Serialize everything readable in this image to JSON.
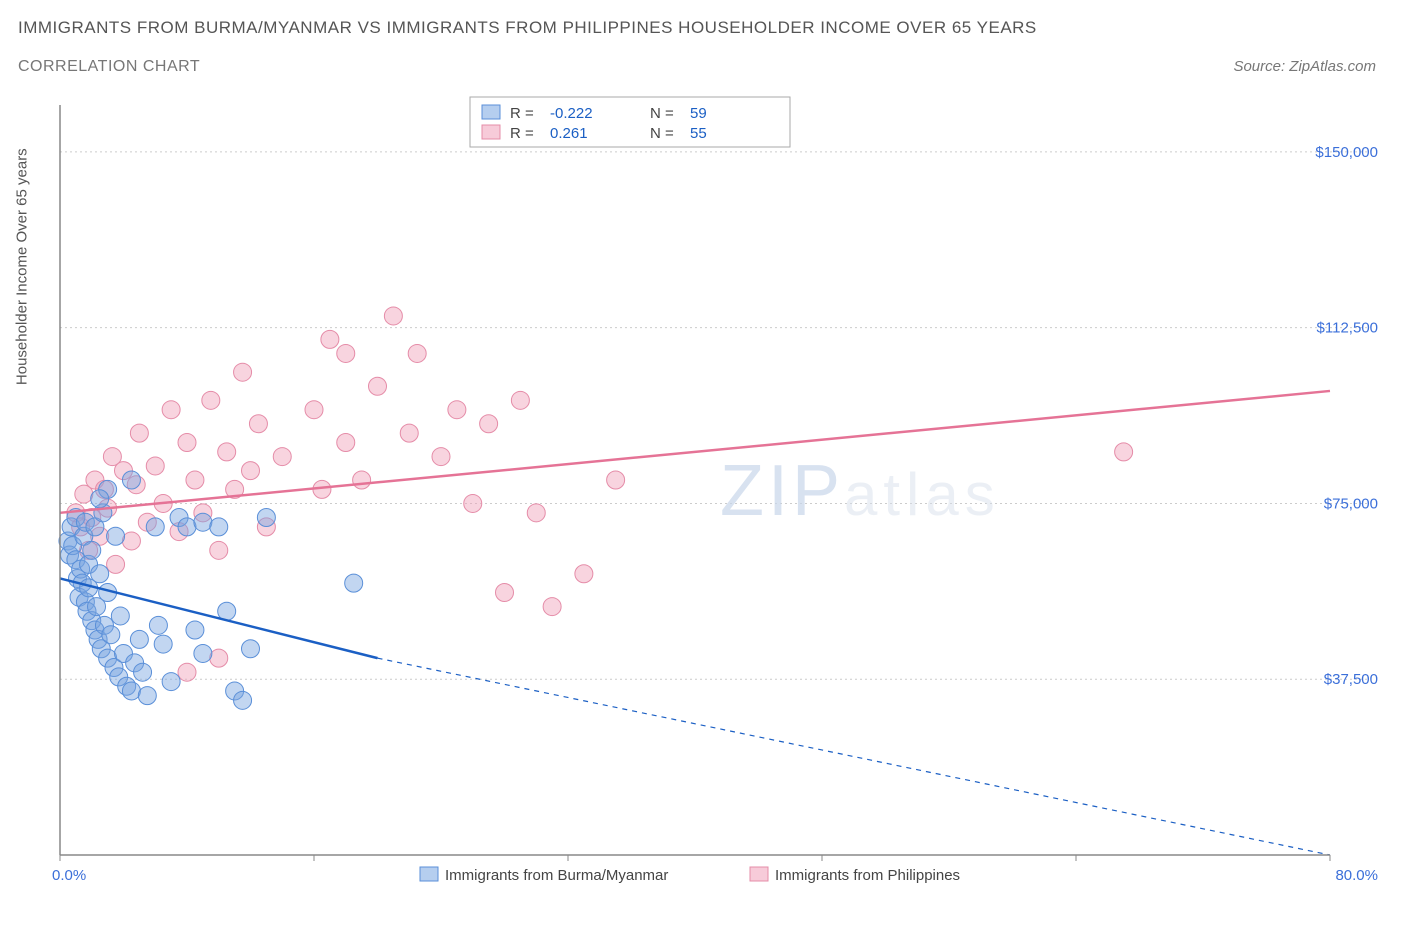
{
  "title_line1": "IMMIGRANTS FROM BURMA/MYANMAR VS IMMIGRANTS FROM PHILIPPINES HOUSEHOLDER INCOME OVER 65 YEARS",
  "title_line2": "CORRELATION CHART",
  "source": "Source: ZipAtlas.com",
  "y_axis_label": "Householder Income Over 65 years",
  "watermark_bold": "ZIP",
  "watermark_light": "atlas",
  "chart": {
    "type": "scatter",
    "background_color": "#ffffff",
    "grid_color": "#cccccc",
    "axis_color": "#888888",
    "xlim": [
      0,
      80
    ],
    "ylim": [
      0,
      160000
    ],
    "x_ticks": [
      0,
      80
    ],
    "x_tick_labels": [
      "0.0%",
      "80.0%"
    ],
    "x_minor_ticks": [
      16,
      32,
      48,
      64
    ],
    "y_ticks": [
      37500,
      75000,
      112500,
      150000
    ],
    "y_tick_labels": [
      "$37,500",
      "$75,000",
      "$112,500",
      "$150,000"
    ],
    "marker_radius": 9,
    "series": [
      {
        "name": "Immigrants from Burma/Myanmar",
        "color_fill": "rgba(120,165,225,0.45)",
        "color_stroke": "#5a8fd8",
        "R": "-0.222",
        "N": "59",
        "trend": {
          "x1": 0,
          "y1": 59000,
          "x2_solid": 20,
          "y2_solid": 42000,
          "x2_dash": 80,
          "y2_dash": 0,
          "color": "#1b5fc4"
        },
        "points": [
          [
            0.5,
            67000
          ],
          [
            0.6,
            64000
          ],
          [
            0.7,
            70000
          ],
          [
            0.8,
            66000
          ],
          [
            1.0,
            63000
          ],
          [
            1.0,
            72000
          ],
          [
            1.1,
            59000
          ],
          [
            1.2,
            55000
          ],
          [
            1.3,
            61000
          ],
          [
            1.4,
            58000
          ],
          [
            1.5,
            68000
          ],
          [
            1.6,
            54000
          ],
          [
            1.6,
            71000
          ],
          [
            1.7,
            52000
          ],
          [
            1.8,
            57000
          ],
          [
            1.8,
            62000
          ],
          [
            2.0,
            65000
          ],
          [
            2.0,
            50000
          ],
          [
            2.2,
            48000
          ],
          [
            2.2,
            70000
          ],
          [
            2.3,
            53000
          ],
          [
            2.4,
            46000
          ],
          [
            2.5,
            60000
          ],
          [
            2.6,
            44000
          ],
          [
            2.7,
            73000
          ],
          [
            2.8,
            49000
          ],
          [
            3.0,
            42000
          ],
          [
            3.0,
            56000
          ],
          [
            3.2,
            47000
          ],
          [
            3.4,
            40000
          ],
          [
            3.5,
            68000
          ],
          [
            3.7,
            38000
          ],
          [
            3.8,
            51000
          ],
          [
            4.0,
            43000
          ],
          [
            4.2,
            36000
          ],
          [
            4.5,
            35000
          ],
          [
            4.7,
            41000
          ],
          [
            5.0,
            46000
          ],
          [
            5.2,
            39000
          ],
          [
            5.5,
            34000
          ],
          [
            6.0,
            70000
          ],
          [
            6.2,
            49000
          ],
          [
            6.5,
            45000
          ],
          [
            7.0,
            37000
          ],
          [
            7.5,
            72000
          ],
          [
            8.0,
            70000
          ],
          [
            8.5,
            48000
          ],
          [
            9.0,
            43000
          ],
          [
            9.0,
            71000
          ],
          [
            10.0,
            70000
          ],
          [
            10.5,
            52000
          ],
          [
            11.0,
            35000
          ],
          [
            11.5,
            33000
          ],
          [
            12.0,
            44000
          ],
          [
            13.0,
            72000
          ],
          [
            4.5,
            80000
          ],
          [
            3.0,
            78000
          ],
          [
            2.5,
            76000
          ],
          [
            18.5,
            58000
          ]
        ]
      },
      {
        "name": "Immigrants from Philippines",
        "color_fill": "rgba(240,160,185,0.45)",
        "color_stroke": "#e58ca8",
        "R": "0.261",
        "N": "55",
        "trend": {
          "x1": 0,
          "y1": 73000,
          "x2": 80,
          "y2": 99000,
          "color": "#e57396"
        },
        "points": [
          [
            1.0,
            73000
          ],
          [
            1.3,
            70000
          ],
          [
            1.5,
            77000
          ],
          [
            1.8,
            65000
          ],
          [
            2.0,
            72000
          ],
          [
            2.2,
            80000
          ],
          [
            2.5,
            68000
          ],
          [
            2.8,
            78000
          ],
          [
            3.0,
            74000
          ],
          [
            3.3,
            85000
          ],
          [
            3.5,
            62000
          ],
          [
            4.0,
            82000
          ],
          [
            4.5,
            67000
          ],
          [
            4.8,
            79000
          ],
          [
            5.0,
            90000
          ],
          [
            5.5,
            71000
          ],
          [
            6.0,
            83000
          ],
          [
            6.5,
            75000
          ],
          [
            7.0,
            95000
          ],
          [
            7.5,
            69000
          ],
          [
            8.0,
            88000
          ],
          [
            8.5,
            80000
          ],
          [
            9.0,
            73000
          ],
          [
            9.5,
            97000
          ],
          [
            10.0,
            65000
          ],
          [
            10.5,
            86000
          ],
          [
            11.0,
            78000
          ],
          [
            11.5,
            103000
          ],
          [
            12.0,
            82000
          ],
          [
            12.5,
            92000
          ],
          [
            13.0,
            70000
          ],
          [
            8.0,
            39000
          ],
          [
            10.0,
            42000
          ],
          [
            14.0,
            85000
          ],
          [
            16.0,
            95000
          ],
          [
            16.5,
            78000
          ],
          [
            17.0,
            110000
          ],
          [
            18.0,
            107000
          ],
          [
            18.0,
            88000
          ],
          [
            19.0,
            80000
          ],
          [
            20.0,
            100000
          ],
          [
            21.0,
            115000
          ],
          [
            22.0,
            90000
          ],
          [
            22.5,
            107000
          ],
          [
            24.0,
            85000
          ],
          [
            25.0,
            95000
          ],
          [
            26.0,
            75000
          ],
          [
            27.0,
            92000
          ],
          [
            28.0,
            56000
          ],
          [
            29.0,
            97000
          ],
          [
            30.0,
            73000
          ],
          [
            31.0,
            53000
          ],
          [
            33.0,
            60000
          ],
          [
            35.0,
            80000
          ],
          [
            67.0,
            86000
          ]
        ]
      }
    ],
    "legend_bottom": {
      "items": [
        {
          "label": "Immigrants from Burma/Myanmar",
          "swatch": "blue"
        },
        {
          "label": "Immigrants from Philippines",
          "swatch": "pink"
        }
      ]
    },
    "legend_top": {
      "R_label": "R =",
      "N_label": "N ="
    }
  }
}
